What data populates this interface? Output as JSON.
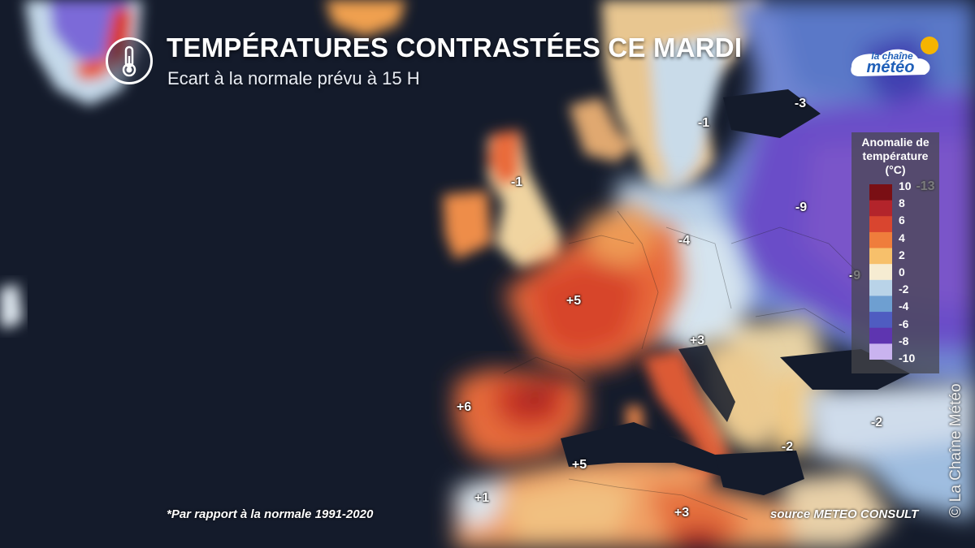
{
  "header": {
    "title": "TEMPÉRATURES CONTRASTÉES CE MARDI",
    "subtitle": "Ecart à la normale prévu à 15 H",
    "icon": "thermometer-icon"
  },
  "logo": {
    "line1": "la chaîne",
    "line2": "météo",
    "colors": {
      "sun": "#f5b400",
      "blue": "#1f5fb8"
    }
  },
  "map": {
    "labels": [
      {
        "name": "label-north-sea-uk",
        "text": "-1"
      },
      {
        "name": "label-scandinavia",
        "text": "-1"
      },
      {
        "name": "label-baltic",
        "text": "-3"
      },
      {
        "name": "label-russia",
        "text": "-9"
      },
      {
        "name": "label-poland",
        "text": "-4"
      },
      {
        "name": "label-ukraine",
        "text": "-9"
      },
      {
        "name": "label-france",
        "text": "+5"
      },
      {
        "name": "label-italy-north",
        "text": "+3"
      },
      {
        "name": "label-iberia",
        "text": "+6"
      },
      {
        "name": "label-north-africa",
        "text": "+5"
      },
      {
        "name": "label-morocco",
        "text": "+1"
      },
      {
        "name": "label-libya",
        "text": "+3"
      },
      {
        "name": "label-greece",
        "text": "-2"
      },
      {
        "name": "label-turkey",
        "text": "-2"
      },
      {
        "name": "label-urals",
        "text": "-13"
      }
    ]
  },
  "legend": {
    "title_lines": [
      "Anomalie de",
      "température",
      "(°C)"
    ],
    "ticks": [
      "10",
      "8",
      "6",
      "4",
      "2",
      "0",
      "-2",
      "-4",
      "-6",
      "-8",
      "-10"
    ],
    "colors": [
      "#7a0f14",
      "#b3242b",
      "#d9452f",
      "#ef7d3c",
      "#f7c06b",
      "#f6ecd2",
      "#b9d3e8",
      "#6e9fd1",
      "#4f5cc1",
      "#5e35b0",
      "#c9b3ef"
    ]
  },
  "footer": {
    "footnote": "*Par rapport à la normale 1991-2020",
    "source": "source METEO CONSULT",
    "copyright": "© La Chaîne Météo"
  }
}
